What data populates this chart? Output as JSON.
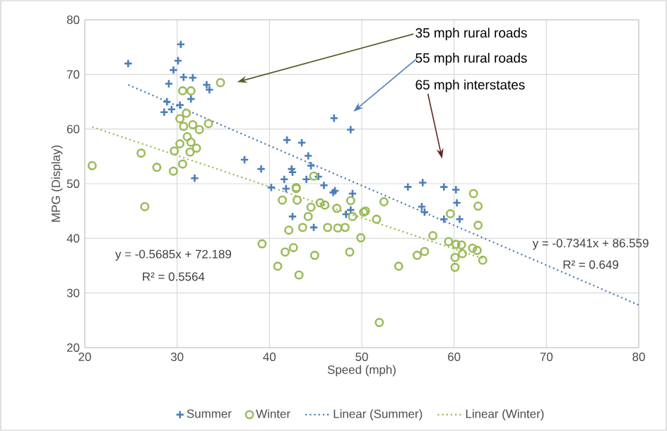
{
  "chart_data": {
    "type": "scatter",
    "xlabel": "Speed (mph)",
    "ylabel": "MPG (Display)",
    "xlim": [
      20,
      80
    ],
    "ylim": [
      20,
      80
    ],
    "xticks": [
      20,
      30,
      40,
      50,
      60,
      70,
      80
    ],
    "yticks": [
      20,
      30,
      40,
      50,
      60,
      70,
      80
    ],
    "grid": true,
    "legend": "bottom",
    "series": [
      {
        "name": "Summer",
        "color": "#4a7ebb",
        "marker": "cross",
        "x": [
          24.7,
          30.4,
          30.1,
          29.6,
          29.1,
          30.7,
          31.7,
          33.2,
          33.5,
          28.9,
          28.6,
          29.4,
          30.3,
          31.5,
          31.9,
          37.3,
          39.1,
          41.9,
          43.5,
          44.2,
          44.5,
          42.4,
          47.0,
          48.8,
          45.3,
          45.9,
          47.1,
          49.0,
          40.2,
          41.6,
          41.8,
          42.5,
          42.5,
          44.8,
          44.0,
          46.9,
          48.3,
          48.8,
          55.0,
          56.6,
          58.9,
          60.2,
          56.5,
          56.8,
          60.3,
          58.9,
          60.6
        ],
        "values": [
          72.0,
          75.5,
          72.5,
          70.8,
          68.3,
          69.5,
          69.4,
          68.1,
          67.2,
          65.0,
          63.1,
          63.6,
          64.4,
          65.5,
          51.0,
          54.4,
          52.7,
          58.0,
          57.5,
          55.1,
          53.3,
          52.7,
          62.0,
          59.9,
          51.3,
          49.7,
          48.7,
          48.2,
          49.3,
          50.8,
          49.1,
          52.1,
          44.0,
          42.0,
          50.8,
          48.4,
          44.4,
          45.2,
          49.4,
          50.2,
          49.4,
          48.9,
          45.8,
          44.8,
          46.5,
          43.5,
          43.5
        ]
      },
      {
        "name": "Winter",
        "color": "#9bbb59",
        "marker": "circle",
        "x": [
          20.8,
          26.1,
          27.8,
          29.6,
          30.6,
          34.7,
          30.6,
          31.5,
          31.0,
          30.3,
          30.7,
          31.7,
          32.4,
          33.4,
          31.1,
          30.3,
          31.5,
          29.7,
          31.4,
          32.1,
          44.8,
          42.9,
          26.5,
          42.9,
          41.4,
          43.0,
          44.5,
          44.2,
          45.5,
          46.0,
          42.1,
          43.6,
          46.3,
          47.4,
          48.2,
          47.3,
          48.8,
          49.0,
          50.2,
          39.2,
          42.6,
          41.7,
          44.9,
          40.9,
          43.2,
          48.7,
          49.9,
          50.4,
          52.4,
          51.6,
          54.0,
          51.9,
          57.7,
          56.0,
          56.8,
          59.6,
          59.4,
          60.2,
          60.8,
          60.9,
          60.1,
          60.1,
          62.1,
          62.6,
          62.6,
          62.0,
          62.5,
          63.1
        ],
        "values": [
          53.3,
          55.6,
          53.0,
          52.3,
          53.6,
          68.5,
          67.0,
          67.0,
          62.9,
          61.9,
          60.5,
          60.8,
          59.9,
          61.0,
          58.6,
          57.3,
          57.6,
          56.0,
          55.8,
          56.5,
          51.4,
          49.3,
          45.8,
          49.1,
          47.0,
          47.0,
          45.7,
          44.0,
          46.5,
          46.1,
          41.5,
          42.0,
          42.0,
          41.9,
          42.0,
          45.5,
          46.9,
          44.0,
          44.8,
          39.0,
          38.3,
          37.5,
          36.9,
          34.9,
          33.3,
          37.5,
          40.1,
          45.0,
          46.7,
          43.5,
          34.9,
          24.6,
          40.5,
          36.9,
          37.6,
          44.5,
          39.4,
          38.9,
          38.8,
          37.2,
          36.5,
          34.7,
          48.2,
          45.9,
          42.4,
          38.2,
          37.8,
          36.0
        ]
      },
      {
        "name": "Linear (Summer)",
        "type": "line",
        "color": "#4a7ebb",
        "line_style": "dotted",
        "marker": "none",
        "x": [
          24.7,
          80
        ],
        "values": [
          68.1,
          27.8
        ]
      },
      {
        "name": "Linear (Winter)",
        "type": "line",
        "color": "#9bbb59",
        "line_style": "dotted",
        "marker": "none",
        "x": [
          20.8,
          63.1
        ],
        "values": [
          60.4,
          36.3
        ]
      }
    ],
    "annotations": [
      "y = -0.5685x + 72.189",
      "R² = 0.5564",
      "y = -0.7341x + 86.559",
      "R² = 0.649",
      "35 mph rural roads",
      "55 mph rural roads",
      "65 mph interstates"
    ]
  }
}
